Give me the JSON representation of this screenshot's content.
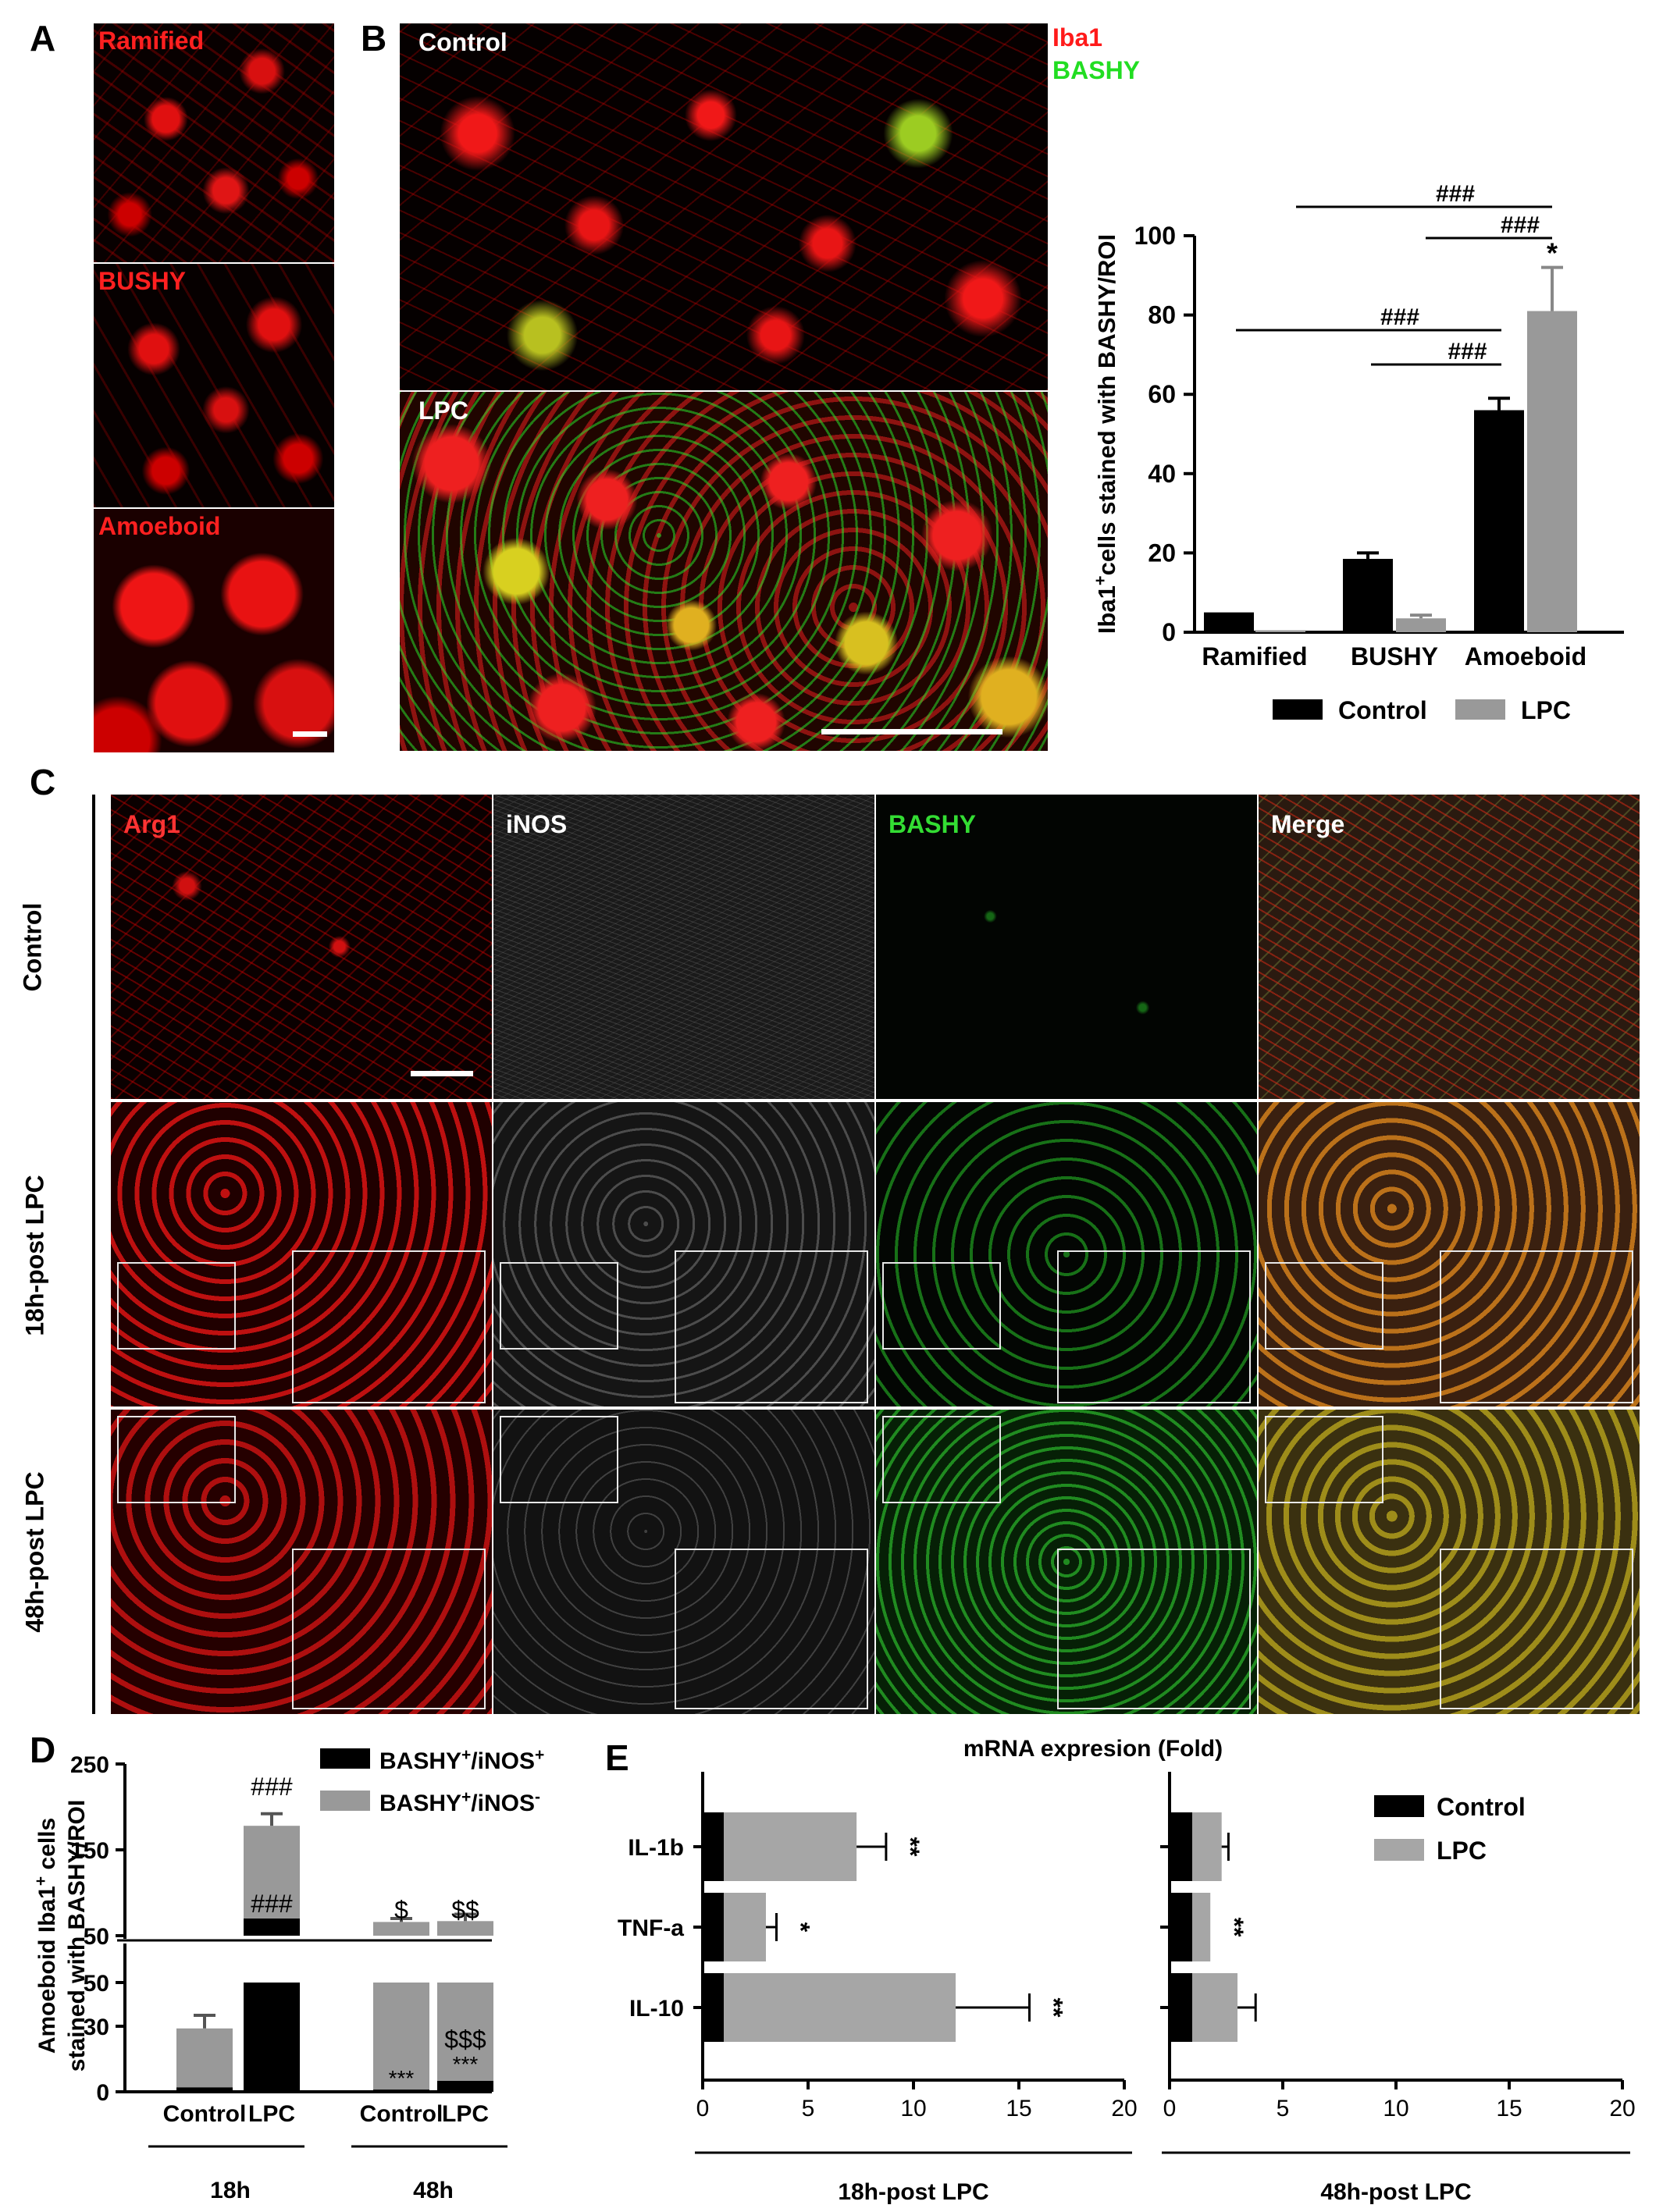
{
  "panels": {
    "A": {
      "letter": "A",
      "subpanels": [
        {
          "label": "Ramified"
        },
        {
          "label": "BUSHY"
        },
        {
          "label": "Amoeboid"
        }
      ]
    },
    "B": {
      "letter": "B",
      "images": [
        {
          "label": "Control"
        },
        {
          "label": "LPC"
        }
      ],
      "channels": [
        {
          "label": "Iba1",
          "color": "#ff1a1a"
        },
        {
          "label": "BASHY",
          "color": "#22dd22"
        }
      ]
    },
    "C": {
      "letter": "C",
      "columns": [
        {
          "label": "Arg1",
          "color": "#ff3333"
        },
        {
          "label": "iNOS",
          "color": "#ffffff"
        },
        {
          "label": "BASHY",
          "color": "#33dd33"
        },
        {
          "label": "Merge",
          "color": "#ffffff"
        }
      ],
      "rows": [
        {
          "label": "Control"
        },
        {
          "label": "18h-post LPC"
        },
        {
          "label": "48h-post LPC"
        }
      ]
    },
    "D": {
      "letter": "D"
    },
    "E": {
      "letter": "E"
    }
  },
  "chart_data": [
    {
      "id": "B",
      "type": "bar",
      "categories": [
        "Ramified",
        "BUSHY",
        "Amoeboid"
      ],
      "series": [
        {
          "name": "Control",
          "values": [
            5,
            18.5,
            56
          ],
          "errors": [
            0,
            1.5,
            3
          ],
          "color": "#000000"
        },
        {
          "name": "LPC",
          "values": [
            0.5,
            3.5,
            81
          ],
          "errors": [
            0,
            0.8,
            11
          ],
          "color": "#999999"
        }
      ],
      "ylabel_main": "Iba1",
      "ylabel_sup": "+",
      "ylabel_rest": "cells stained with BASHY/ROI",
      "ylim": [
        0,
        100
      ],
      "yticks": [
        "0",
        "20",
        "40",
        "60",
        "80",
        "100"
      ],
      "legend_position": "bottom",
      "annotations": [
        {
          "text": "###",
          "from": [
            0,
            0
          ],
          "to": [
            2,
            0
          ],
          "y": 83
        },
        {
          "text": "###",
          "from": [
            1,
            0
          ],
          "to": [
            2,
            0
          ],
          "y": 75
        },
        {
          "text": "###",
          "from": [
            0,
            1
          ],
          "to": [
            2,
            1
          ],
          "y": 105
        },
        {
          "text": "###",
          "from": [
            1,
            1
          ],
          "to": [
            2,
            1
          ],
          "y": 98
        },
        {
          "text": "*",
          "bar": [
            2,
            1
          ],
          "y": 95
        }
      ]
    },
    {
      "id": "D",
      "type": "bar",
      "stacked": true,
      "groups": [
        "18h",
        "48h"
      ],
      "categories": [
        "Control",
        "LPC",
        "Control",
        "LPC"
      ],
      "series": [
        {
          "name_main": "BASHY",
          "name_sup": "+",
          "name_mid": "/iNOS",
          "name_sup2": "+",
          "values": [
            2,
            70,
            1,
            5
          ],
          "color": "#000000"
        },
        {
          "name_main": "BASHY",
          "name_sup": "+",
          "name_mid": "/iNOS",
          "name_sup2": "-",
          "values": [
            27,
            108,
            65,
            62
          ],
          "color": "#999999"
        }
      ],
      "totals": [
        29,
        178,
        66,
        67
      ],
      "errors": [
        6,
        14,
        4,
        8
      ],
      "ylabel_line1_main": "Amoeboid Iba1",
      "ylabel_line1_sup": "+",
      "ylabel_line1_rest": "cells",
      "ylabel_line2": "stained with BASHY/ROI",
      "axis_break": true,
      "lower_range": [
        0,
        50
      ],
      "upper_range": [
        50,
        250
      ],
      "lower_ticks": [
        "0",
        "30",
        "50"
      ],
      "upper_ticks": [
        "50",
        "150",
        "250"
      ],
      "annotations_text": [
        "###",
        "###",
        "$",
        "$$",
        "$$$",
        "***",
        "***"
      ]
    },
    {
      "id": "E",
      "type": "bar",
      "orientation": "horizontal",
      "title": "mRNA expresion (Fold)",
      "categories": [
        "IL-1b",
        "TNF-a",
        "IL-10"
      ],
      "panels": [
        {
          "xlabel": "18h-post LPC",
          "series": [
            {
              "name": "Control",
              "values": [
                1,
                1,
                1
              ],
              "color": "#000000"
            },
            {
              "name": "LPC",
              "values": [
                7.3,
                3,
                12
              ],
              "errors": [
                1.4,
                0.5,
                3.5
              ],
              "color": "#a6a6a6"
            }
          ],
          "significance": [
            "**",
            "*",
            "**"
          ]
        },
        {
          "xlabel": "48h-post LPC",
          "series": [
            {
              "name": "Control",
              "values": [
                1,
                1,
                1
              ],
              "color": "#000000"
            },
            {
              "name": "LPC",
              "values": [
                2.3,
                1.8,
                3
              ],
              "errors": [
                0.3,
                0,
                0.8
              ],
              "color": "#a6a6a6"
            }
          ],
          "significance": [
            "",
            "**",
            ""
          ]
        }
      ],
      "xlim": [
        0,
        20
      ],
      "xticks": [
        "0",
        "5",
        "10",
        "15",
        "20"
      ],
      "legend": [
        "Control",
        "LPC"
      ]
    }
  ]
}
